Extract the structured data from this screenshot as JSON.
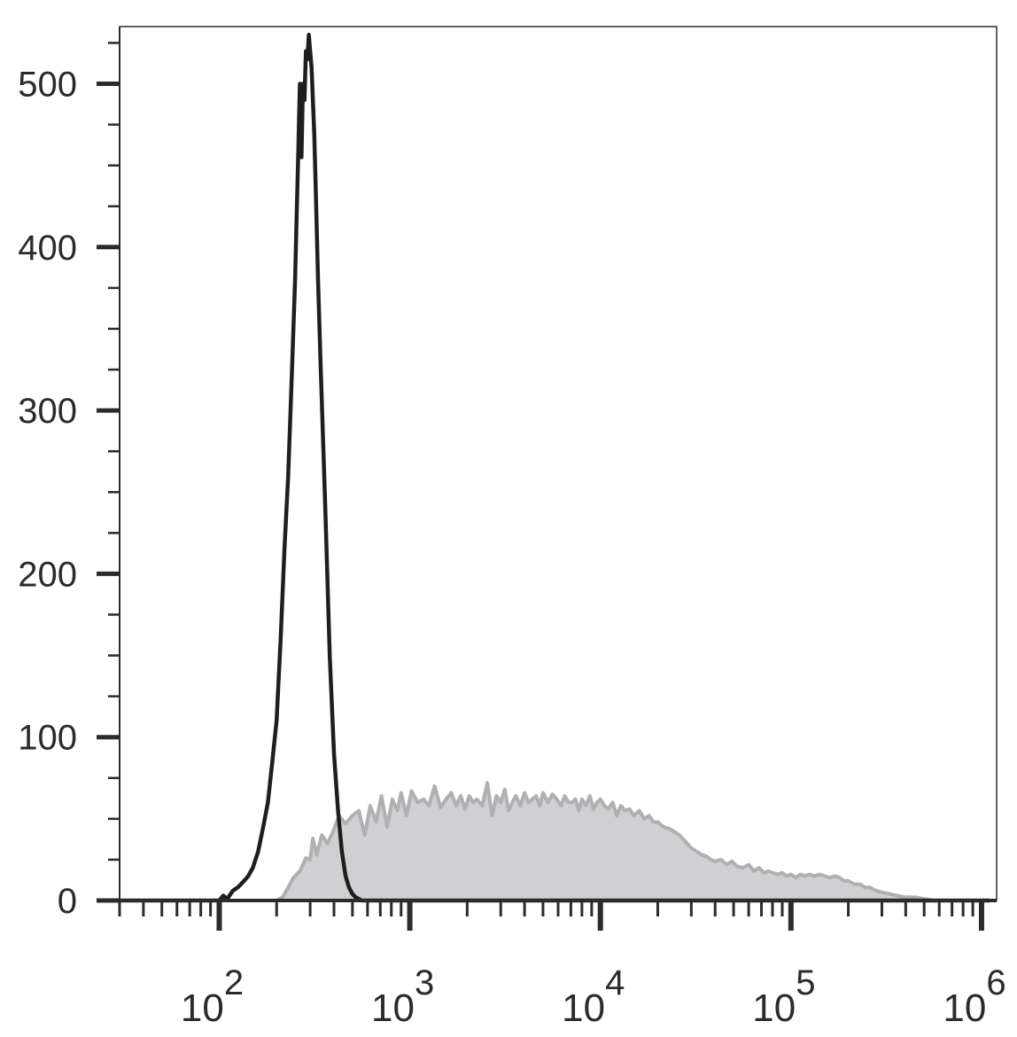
{
  "chart_data": {
    "type": "area",
    "title": "",
    "xlabel": "",
    "ylabel": "",
    "x_scale": "log",
    "xlim": [
      30,
      1200000
    ],
    "ylim": [
      0,
      535
    ],
    "grid": false,
    "y_ticks": [
      0,
      100,
      200,
      300,
      400,
      500
    ],
    "y_tick_labels": [
      "0",
      "100",
      "200",
      "300",
      "400",
      "500"
    ],
    "x_ticks": [
      {
        "value": 100,
        "base": "10",
        "exp": "2"
      },
      {
        "value": 1000,
        "base": "10",
        "exp": "3"
      },
      {
        "value": 10000,
        "base": "10",
        "exp": "4"
      },
      {
        "value": 100000,
        "base": "10",
        "exp": "5"
      },
      {
        "value": 1000000,
        "base": "10",
        "exp": "6"
      }
    ],
    "series": [
      {
        "style": "filled",
        "color": "#b0b0b2",
        "fill": "#d0d0d2",
        "x": [
          155,
          170,
          185,
          200,
          215,
          230,
          245,
          265,
          285,
          300,
          310,
          325,
          345,
          370,
          395,
          425,
          460,
          500,
          540,
          580,
          620,
          665,
          710,
          760,
          810,
          860,
          900,
          960,
          1020,
          1100,
          1180,
          1260,
          1350,
          1450,
          1550,
          1650,
          1750,
          1850,
          1950,
          2050,
          2150,
          2250,
          2400,
          2550,
          2700,
          2850,
          3000,
          3150,
          3300,
          3450,
          3600,
          3800,
          4000,
          4200,
          4400,
          4600,
          4800,
          5000,
          5300,
          5600,
          5900,
          6200,
          6500,
          6800,
          7100,
          7400,
          7700,
          8000,
          8400,
          8800,
          9200,
          9600,
          10000,
          10500,
          11000,
          11600,
          12200,
          12800,
          13500,
          14200,
          15000,
          16000,
          17000,
          18000,
          19000,
          20000,
          21500,
          23000,
          24500,
          26000,
          28000,
          30000,
          32000,
          34000,
          36000,
          38000,
          40000,
          43000,
          46000,
          49000,
          52000,
          56000,
          60000,
          64000,
          68000,
          72000,
          76000,
          80000,
          85000,
          90000,
          95000,
          100000,
          106000,
          112000,
          118000,
          125000,
          133000,
          141000,
          150000,
          160000,
          170000,
          180000,
          190000,
          200000,
          215000,
          230000,
          245000,
          260000,
          280000,
          300000,
          330000,
          360000,
          400000,
          450000,
          500000,
          560000,
          620000,
          700000,
          800000,
          900000,
          1000000,
          1050000,
          1100000,
          1150000
        ],
        "y": [
          0,
          0,
          0,
          0,
          2,
          8,
          14,
          18,
          26,
          25,
          38,
          28,
          40,
          35,
          42,
          52,
          47,
          52,
          55,
          40,
          58,
          48,
          64,
          45,
          62,
          55,
          66,
          52,
          67,
          60,
          62,
          58,
          70,
          57,
          62,
          66,
          58,
          64,
          56,
          64,
          60,
          62,
          58,
          72,
          52,
          64,
          60,
          68,
          55,
          60,
          64,
          58,
          66,
          60,
          62,
          64,
          58,
          66,
          60,
          65,
          62,
          58,
          64,
          60,
          60,
          62,
          55,
          62,
          58,
          64,
          56,
          60,
          62,
          58,
          56,
          60,
          52,
          58,
          55,
          56,
          52,
          55,
          50,
          52,
          48,
          48,
          45,
          44,
          42,
          40,
          36,
          32,
          30,
          28,
          27,
          25,
          24,
          25,
          22,
          24,
          21,
          20,
          22,
          18,
          20,
          17,
          18,
          17,
          16,
          17,
          15,
          16,
          14,
          16,
          15,
          16,
          15,
          16,
          15,
          14,
          15,
          14,
          12,
          12,
          10,
          10,
          8,
          8,
          6,
          5,
          4,
          3,
          2,
          2,
          1,
          0,
          0,
          0,
          0,
          0,
          0,
          0,
          0,
          0
        ]
      },
      {
        "style": "line",
        "color": "#1e1e1e",
        "x": [
          30,
          100,
          105,
          110,
          118,
          125,
          130,
          135,
          142,
          150,
          160,
          170,
          180,
          190,
          200,
          210,
          220,
          230,
          240,
          250,
          255,
          260,
          265,
          270,
          275,
          280,
          285,
          290,
          295,
          300,
          305,
          310,
          315,
          320,
          330,
          340,
          360,
          380,
          400,
          420,
          440,
          460,
          480,
          500,
          520,
          540,
          560,
          580,
          600,
          620,
          640,
          660,
          680,
          700,
          720,
          740,
          760,
          780,
          800,
          820,
          840,
          860,
          880,
          900,
          920,
          940,
          960,
          980,
          1000,
          1100000
        ],
        "y": [
          0,
          0,
          3,
          1,
          6,
          8,
          10,
          12,
          15,
          20,
          30,
          45,
          60,
          85,
          110,
          160,
          215,
          260,
          320,
          380,
          420,
          460,
          500,
          455,
          500,
          490,
          520,
          515,
          530,
          520,
          510,
          490,
          470,
          440,
          380,
          330,
          240,
          150,
          90,
          55,
          30,
          15,
          8,
          4,
          2,
          1,
          0,
          0,
          0,
          0,
          0,
          0,
          0,
          0,
          0,
          0,
          0,
          0,
          0,
          0,
          0,
          0,
          0,
          0,
          0,
          0,
          0,
          0,
          0,
          0
        ]
      }
    ]
  }
}
